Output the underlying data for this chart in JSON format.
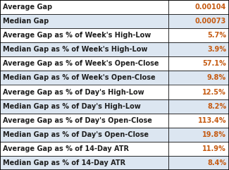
{
  "rows": [
    [
      "Average Gap",
      "0.00104"
    ],
    [
      "Median Gap",
      "0.00073"
    ],
    [
      "Average Gap as % of Week's High-Low",
      "5.7%"
    ],
    [
      "Median Gap as % of Week's High-Low",
      "3.9%"
    ],
    [
      "Average Gap as % of Week's Open-Close",
      "57.1%"
    ],
    [
      "Median Gap as % of Week's Open-Close",
      "9.8%"
    ],
    [
      "Average Gap as % of Day's High-Low",
      "12.5%"
    ],
    [
      "Median Gap as % of Day's High-Low",
      "8.2%"
    ],
    [
      "Average Gap as % of Day's Open-Close",
      "113.4%"
    ],
    [
      "Median Gap as % of Day's Open-Close",
      "19.8%"
    ],
    [
      "Average Gap as % of 14-Day ATR",
      "11.9%"
    ],
    [
      "Median Gap as % of 14-Day ATR",
      "8.4%"
    ]
  ],
  "avg_bg": "#ffffff",
  "med_bg": "#dce6f1",
  "border_color": "#000000",
  "label_color": "#1f1f1f",
  "value_color": "#c55a11",
  "font_size": 7.0,
  "col_split": 0.735,
  "fig_width": 3.25,
  "fig_height": 2.41,
  "dpi": 100
}
